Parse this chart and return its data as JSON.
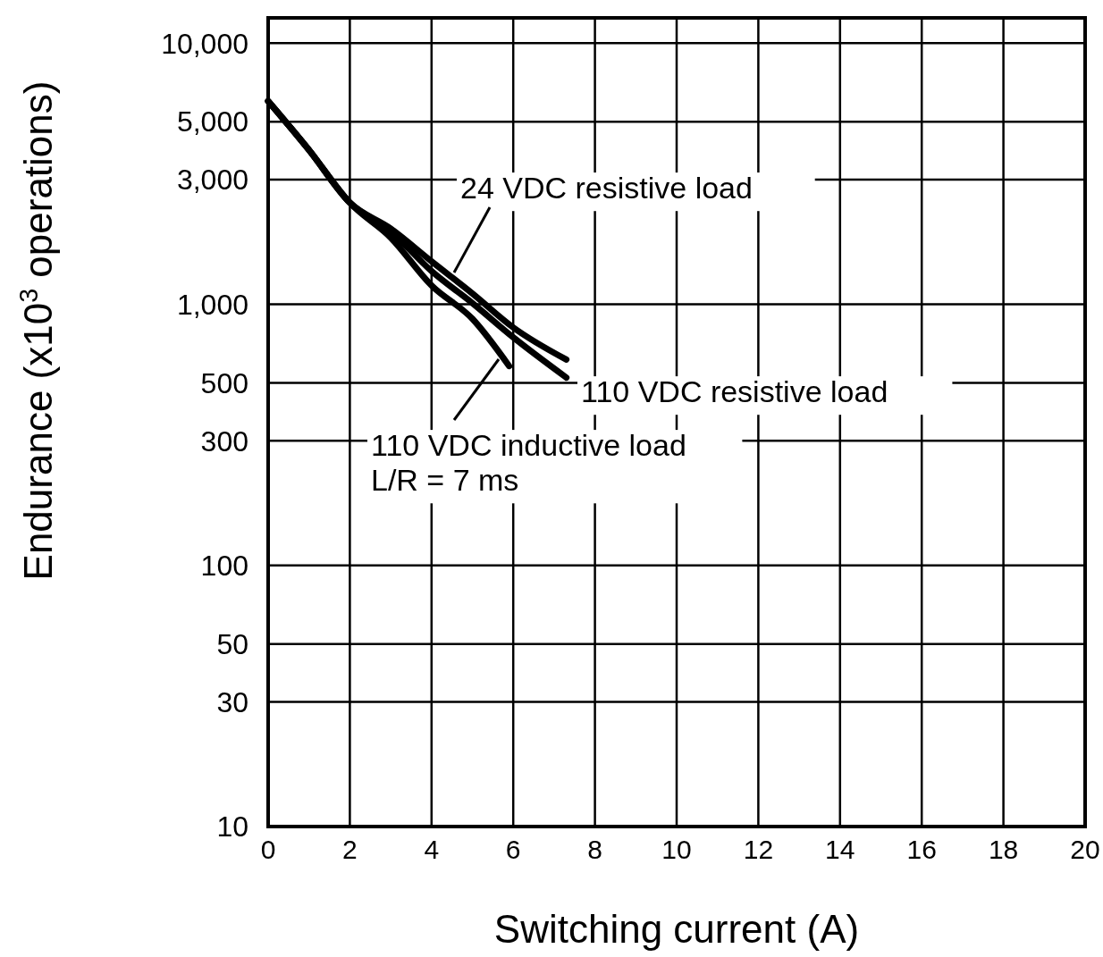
{
  "chart_data": {
    "type": "line",
    "xlabel": "Switching current (A)",
    "ylabel": "Endurance (x10$^{3}$ operations)",
    "log": "y",
    "xlim": [
      0,
      20
    ],
    "xticks": [
      0,
      2,
      4,
      6,
      8,
      10,
      12,
      14,
      16,
      18,
      20
    ],
    "ylim": [
      10,
      12500
    ],
    "yticks": [
      10,
      30,
      50,
      100,
      300,
      500,
      {
        "value": 1000,
        "label": "1,000"
      },
      {
        "value": 3000,
        "label": "3,000"
      },
      {
        "value": 5000,
        "label": "5,000"
      },
      {
        "value": 10000,
        "label": "10,000"
      }
    ],
    "grid": true,
    "series": [
      {
        "name": "24 VDC resistive load",
        "color": "#000000",
        "x": [
          0,
          1,
          2,
          3,
          4,
          5,
          6,
          7.3
        ],
        "values": [
          6000,
          3900,
          2450,
          1950,
          1460,
          1100,
          815,
          614
        ]
      },
      {
        "name": "110 VDC resistive load",
        "color": "#000000",
        "x": [
          0,
          1,
          2,
          3,
          4,
          5,
          6,
          7.3
        ],
        "values": [
          6000,
          3900,
          2450,
          1900,
          1340,
          1010,
          747,
          524
        ]
      },
      {
        "name": "110 VDC inductive load\nL/R = 7 ms",
        "color": "#000000",
        "x": [
          0,
          1,
          2,
          3,
          4,
          5,
          5.9
        ],
        "values": [
          6000,
          3900,
          2450,
          1800,
          1180,
          880,
          580
        ]
      }
    ]
  }
}
